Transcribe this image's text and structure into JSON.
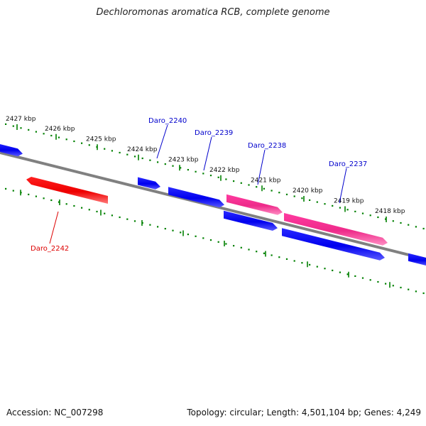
{
  "title": "Dechloromonas aromatica RCB, complete genome",
  "footer": {
    "accession": "Accession: NC_007298",
    "summary": "Topology: circular; Length: 4,501,104 bp; Genes: 4,249"
  },
  "colors": {
    "backbone": "#808080",
    "tick": "#008000",
    "gene_blue": "#0000ee",
    "gene_red": "#ff0000",
    "gene_pink": "#ee2b8a",
    "label_blue": "#0000cc",
    "label_red": "#dd0000"
  },
  "ticks": [
    {
      "label": "2427 kbp"
    },
    {
      "label": "2426 kbp"
    },
    {
      "label": "2425 kbp"
    },
    {
      "label": "2424 kbp"
    },
    {
      "label": "2423 kbp"
    },
    {
      "label": "2422 kbp"
    },
    {
      "label": "2421 kbp"
    },
    {
      "label": "2420 kbp"
    },
    {
      "label": "2419 kbp"
    },
    {
      "label": "2418 kbp"
    }
  ],
  "genes": [
    {
      "name": "",
      "color": "blue"
    },
    {
      "name": "Daro_2242",
      "color": "red"
    },
    {
      "name": "Daro_2240",
      "color": "blue"
    },
    {
      "name": "Daro_2239",
      "color": "blue"
    },
    {
      "name": "Daro_2238",
      "color": "pink"
    },
    {
      "name": "",
      "color": "blue"
    },
    {
      "name": "Daro_2237",
      "color": "pink"
    },
    {
      "name": "",
      "color": "blue"
    },
    {
      "name": "",
      "color": "blue"
    }
  ]
}
